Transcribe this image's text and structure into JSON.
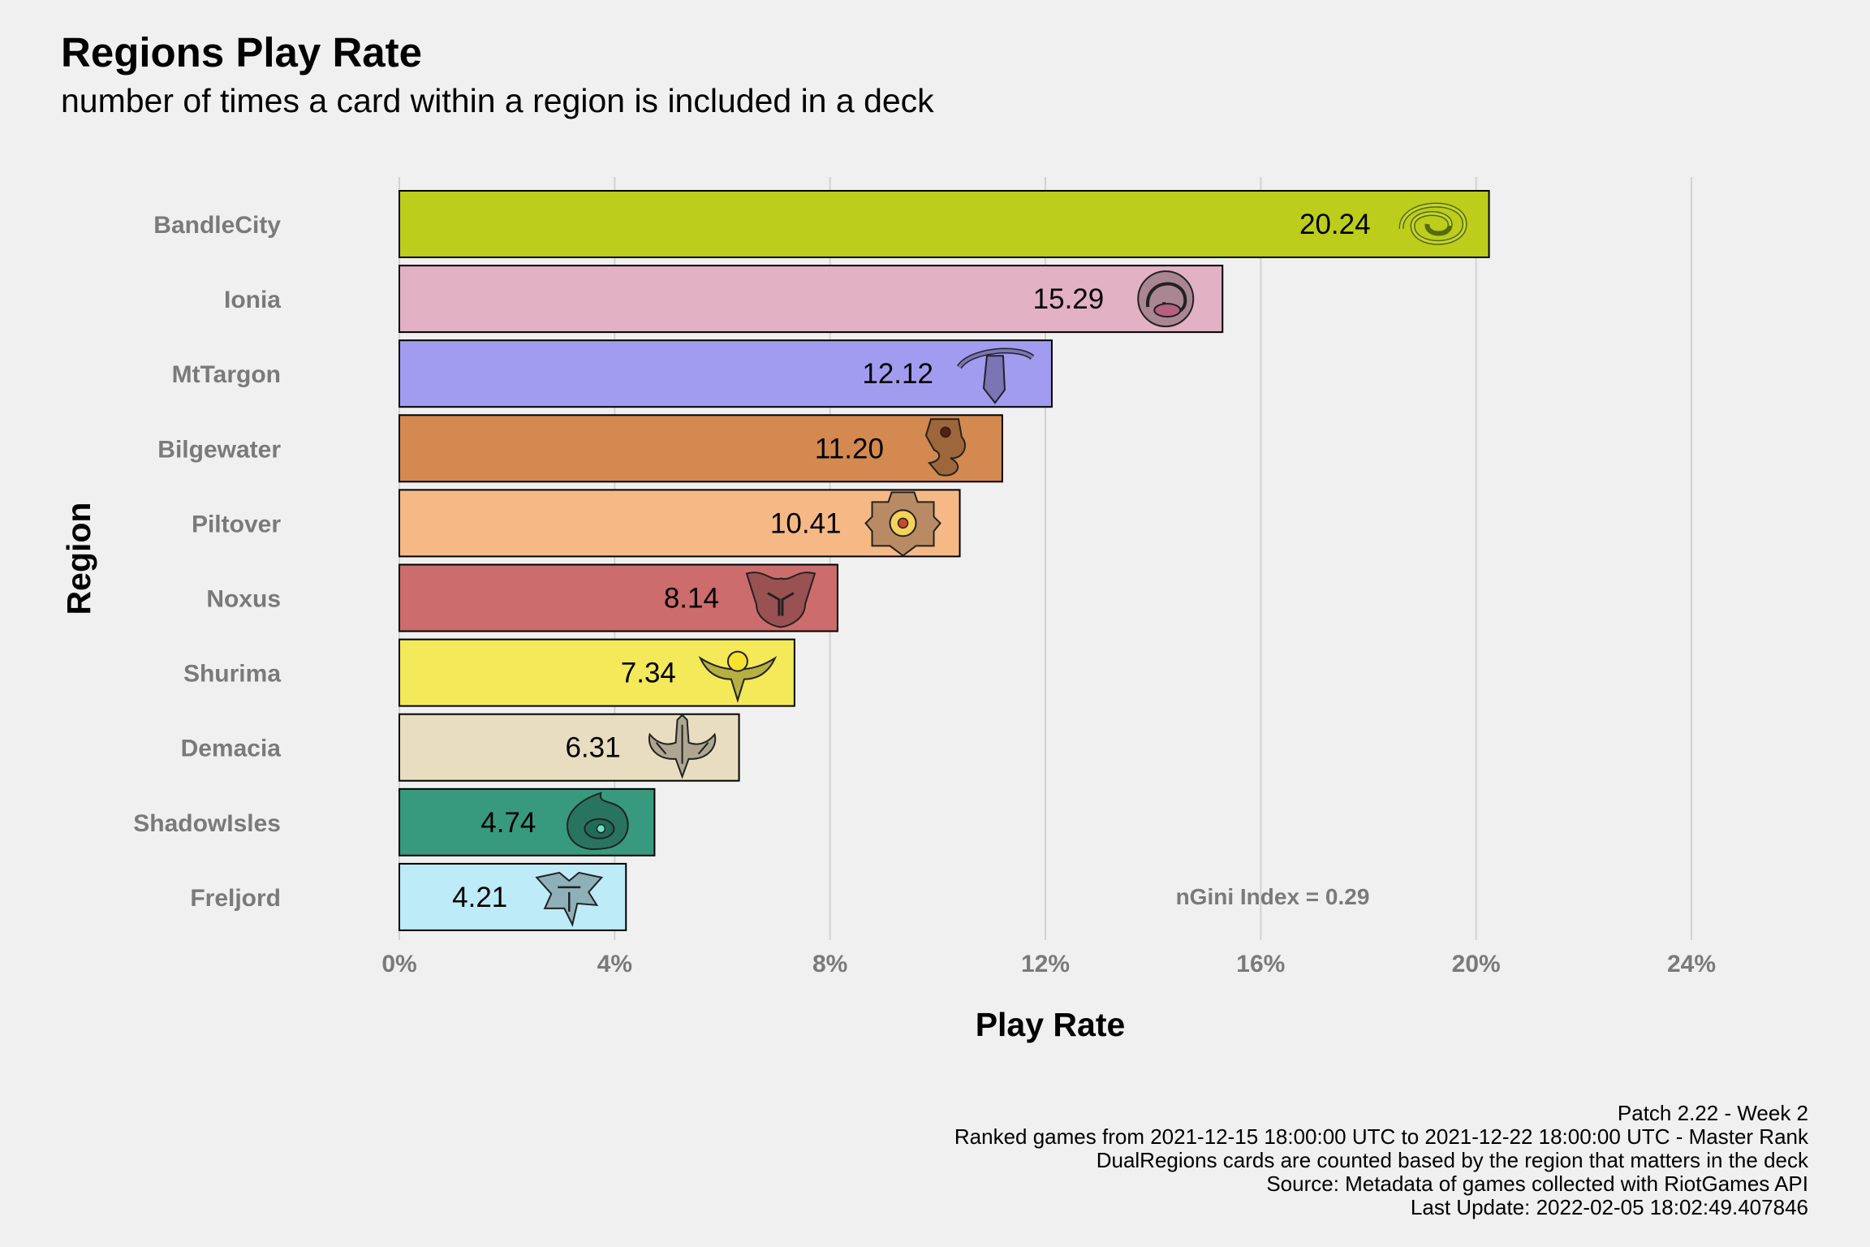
{
  "chart_data": {
    "type": "bar",
    "orientation": "horizontal",
    "title": "Regions Play Rate",
    "subtitle": "number of times a card within a region is included in a deck",
    "xlabel": "Play Rate",
    "ylabel": "Region",
    "xlim": [
      0,
      24
    ],
    "x_ticks": [
      "0%",
      "4%",
      "8%",
      "12%",
      "16%",
      "20%",
      "24%"
    ],
    "grid": true,
    "categories": [
      "BandleCity",
      "Ionia",
      "MtTargon",
      "Bilgewater",
      "Piltover",
      "Noxus",
      "Shurima",
      "Demacia",
      "ShadowIsles",
      "Freljord"
    ],
    "values": [
      20.24,
      15.29,
      12.12,
      11.2,
      10.41,
      8.14,
      7.34,
      6.31,
      4.74,
      4.21
    ],
    "value_labels": [
      "20.24",
      "15.29",
      "12.12",
      "11.20",
      "10.41",
      "8.14",
      "7.34",
      "6.31",
      "4.74",
      "4.21"
    ],
    "colors": [
      "#bccd1b",
      "#e2b1c3",
      "#a29cf0",
      "#d3894f",
      "#f6b985",
      "#cd6c6c",
      "#f3e959",
      "#e8ddc0",
      "#379a7e",
      "#bdebf7"
    ],
    "icons": [
      "bandlecity-emblem-icon",
      "ionia-emblem-icon",
      "mttargon-emblem-icon",
      "bilgewater-emblem-icon",
      "piltover-emblem-icon",
      "noxus-emblem-icon",
      "shurima-emblem-icon",
      "demacia-emblem-icon",
      "shadowisles-emblem-icon",
      "freljord-emblem-icon"
    ],
    "annotation": "nGini Index = 0.29",
    "caption": [
      "Patch 2.22 - Week 2",
      "Ranked games from 2021-12-15 18:00:00 UTC to 2021-12-22 18:00:00 UTC - Master Rank",
      "DualRegions cards are counted based by the region that matters in the deck",
      "Source: Metadata of games collected with RiotGames API",
      "Last Update: 2022-02-05 18:02:49.407846"
    ]
  }
}
